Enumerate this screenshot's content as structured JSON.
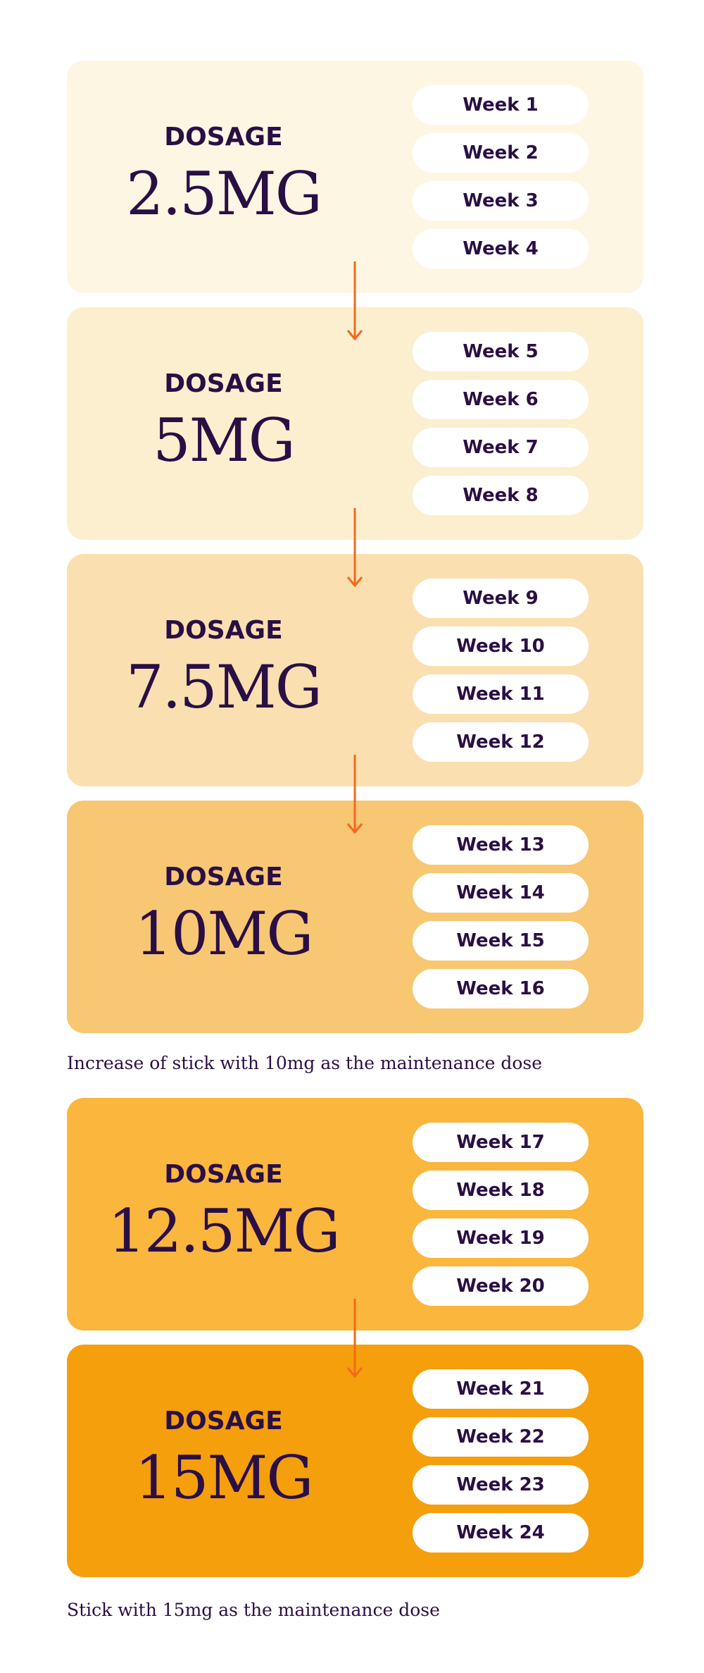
{
  "blocks": [
    {
      "label": "DOSAGE",
      "dose": "2.5MG",
      "weeks": [
        "Week 1",
        "Week 2",
        "Week 3",
        "Week 4"
      ]
    },
    {
      "label": "DOSAGE",
      "dose": "5MG",
      "weeks": [
        "Week 5",
        "Week 6",
        "Week 7",
        "Week 8"
      ]
    },
    {
      "label": "DOSAGE",
      "dose": "7.5MG",
      "weeks": [
        "Week 9",
        "Week 10",
        "Week 11",
        "Week 12"
      ]
    },
    {
      "label": "DOSAGE",
      "dose": "10MG",
      "weeks": [
        "Week 13",
        "Week 14",
        "Week 15",
        "Week 16"
      ]
    },
    {
      "label": "DOSAGE",
      "dose": "12.5MG",
      "weeks": [
        "Week 17",
        "Week 18",
        "Week 19",
        "Week 20"
      ]
    },
    {
      "label": "DOSAGE",
      "dose": "15MG",
      "weeks": [
        "Week 21",
        "Week 22",
        "Week 23",
        "Week 24"
      ]
    }
  ],
  "notes": [
    "Increase of stick with 10mg as the maintenance dose",
    "Stick with 15mg as the maintenance dose"
  ]
}
